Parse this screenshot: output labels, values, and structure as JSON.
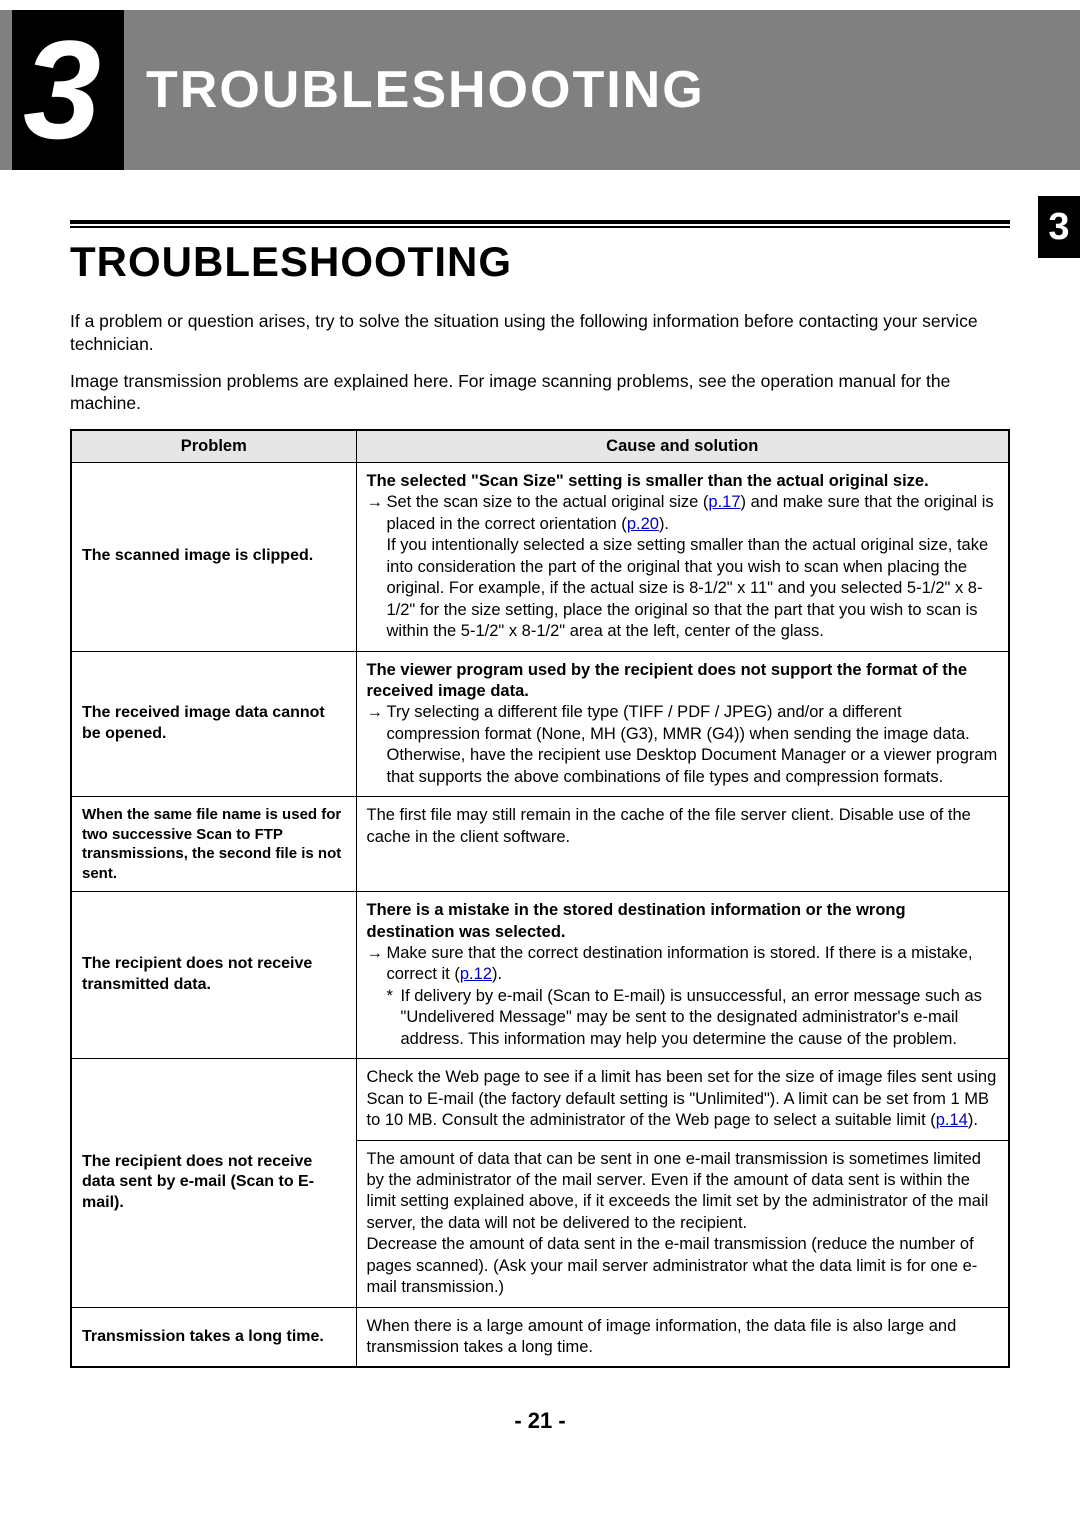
{
  "header": {
    "chapter_number": "3",
    "chapter_title": "TROUBLESHOOTING"
  },
  "side_tab": "3",
  "section": {
    "title": "TROUBLESHOOTING",
    "intro_line1": "If a problem or question arises, try to solve the situation using the following information before contacting your service technician.",
    "intro_line2": "Image transmission problems are explained here. For image scanning problems, see the operation manual for the machine."
  },
  "table": {
    "headers": {
      "col1": "Problem",
      "col2": "Cause and solution"
    },
    "rows": [
      {
        "problem": "The scanned image is clipped.",
        "solution": {
          "bold": "The selected \"Scan Size\" setting is smaller than the actual original size.",
          "arrow_pre": "→",
          "arrow_text_a": "Set the scan size to the actual original size (",
          "link1": "p.17",
          "arrow_text_b": ") and make sure that the original is placed in the correct orientation (",
          "link2": "p.20",
          "arrow_text_c": ").",
          "rest": "If you intentionally selected a size setting smaller than the actual original size, take into consideration the part of the original that you wish to scan when placing the original. For example, if the actual size is 8-1/2\" x 11\" and you selected 5-1/2\" x 8-1/2\" for the size setting, place the original so that the part that you wish to scan is within the 5-1/2\" x 8-1/2\" area at the left, center of the glass."
        }
      },
      {
        "problem": "The received image data cannot be opened.",
        "solution": {
          "bold": "The viewer program used by the recipient does not support the format of the received image data.",
          "arrow_pre": "→",
          "arrow_text": "Try selecting a different file type (TIFF / PDF / JPEG) and/or a different compression format (None, MH (G3), MMR (G4)) when sending the image data.",
          "rest": "Otherwise, have the recipient use Desktop Document Manager or a viewer program that supports the above combinations of file types and compression formats."
        }
      },
      {
        "problem": "When the same file name is used for two successive Scan to FTP transmissions, the second file is not sent.",
        "problem_small": true,
        "solution": {
          "plain": "The first file may still remain in the cache of the file server client. Disable use of the cache in the client software."
        }
      },
      {
        "problem": "The recipient does not receive transmitted data.",
        "solution": {
          "bold": "There is a mistake in the stored destination information or the wrong destination was selected.",
          "arrow_pre": "→",
          "arrow_text_a": "Make sure that the correct destination information is stored. If there is a mistake, correct it (",
          "link1": "p.12",
          "arrow_text_b": ").",
          "star_pre": "*",
          "star_text": "If delivery by e-mail (Scan to E-mail) is unsuccessful, an error message such as \"Undelivered Message\" may be sent to the designated administrator's e-mail address. This information may help you determine the cause of the problem."
        }
      },
      {
        "problem": "The recipient does not receive data sent by e-mail (Scan to E-mail).",
        "rowspan": 2,
        "solution_a": {
          "text_a": "Check the Web page to see if a limit has been set for the size of image files sent using Scan to E-mail (the factory default setting is \"Unlimited\"). A limit can be set from 1 MB to 10 MB. Consult the administrator of the Web page to select a suitable limit (",
          "link": "p.14",
          "text_b": ")."
        },
        "solution_b": {
          "para1": "The amount of data that can be sent in one e-mail transmission is sometimes limited by the administrator of the mail server. Even if the amount of data sent is within the limit setting explained above, if it exceeds the limit set by the administrator of the mail server, the data will not be delivered to the recipient.",
          "para2": "Decrease the amount of data sent in the e-mail transmission (reduce the number of pages scanned). (Ask your mail server administrator what the data limit is for one e-mail transmission.)"
        }
      },
      {
        "problem": "Transmission takes a long time.",
        "solution": {
          "plain": "When there is a large amount of image information, the data file is also large and transmission takes a long time."
        }
      }
    ]
  },
  "page_number": "- 21 -",
  "colors": {
    "header_bg": "#808080",
    "chapter_box_bg": "#000000",
    "th_bg": "#e6e6e6",
    "link": "#0000cc"
  }
}
